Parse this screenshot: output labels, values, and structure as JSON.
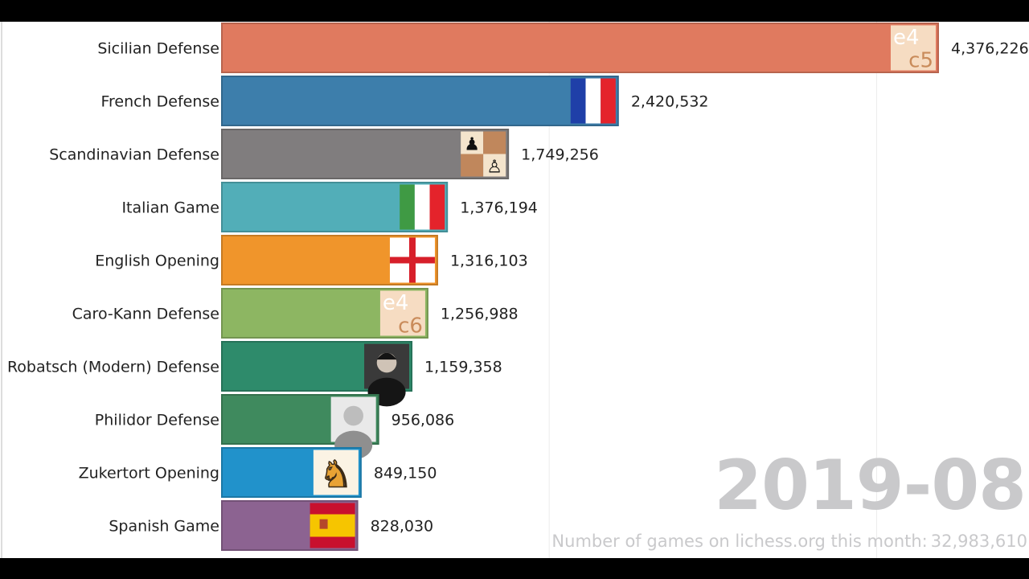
{
  "chart_data": {
    "type": "bar",
    "orientation": "horizontal",
    "categories": [
      "Sicilian Defense",
      "French Defense",
      "Scandinavian Defense",
      "Italian Game",
      "English Opening",
      "Caro-Kann Defense",
      "Robatsch (Modern) Defense",
      "Philidor Defense",
      "Zukertort Opening",
      "Spanish Game"
    ],
    "values": [
      4376226,
      2420532,
      1749256,
      1376194,
      1316103,
      1256988,
      1159358,
      956086,
      849150,
      828030
    ],
    "value_labels": [
      "4,376,226",
      "2,420,532",
      "1,749,256",
      "1,376,194",
      "1,316,103",
      "1,256,988",
      "1,159,358",
      "956,086",
      "849,150",
      "828,030"
    ],
    "colors": [
      "#e07a5f",
      "#3d7eab",
      "#807d7e",
      "#52aeb8",
      "#f0952b",
      "#8db662",
      "#2e8b6b",
      "#3f8a5e",
      "#2192cb",
      "#8c6391"
    ],
    "badges": [
      {
        "kind": "move-pair",
        "top": "e4",
        "bottom": "c5"
      },
      {
        "kind": "flag-france"
      },
      {
        "kind": "chess-squares"
      },
      {
        "kind": "flag-italy"
      },
      {
        "kind": "flag-england"
      },
      {
        "kind": "move-pair",
        "top": "e4",
        "bottom": "c6"
      },
      {
        "kind": "portrait"
      },
      {
        "kind": "portrait"
      },
      {
        "kind": "knight-icon"
      },
      {
        "kind": "flag-spain"
      }
    ],
    "gridlines": [
      2000000,
      4000000
    ],
    "xlim": [
      0,
      4400000
    ]
  },
  "period": "2019-08",
  "caption": {
    "label": "Number of games on lichess.org this month:",
    "value": "32,983,610"
  }
}
